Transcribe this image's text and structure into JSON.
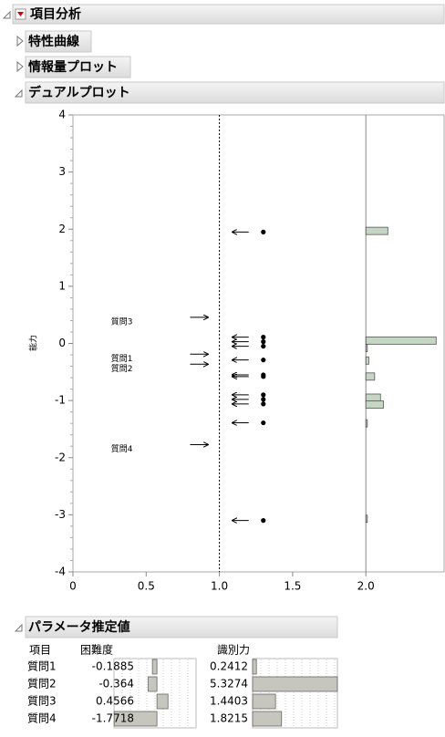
{
  "outline": {
    "title": "項目分析",
    "sections": [
      "特性曲線",
      "情報量プロット",
      "デュアルプロット"
    ]
  },
  "dual_plot": {
    "type": "scatter",
    "y_label": "能力",
    "xlim": [
      0,
      2.5
    ],
    "ylim": [
      -4,
      4
    ],
    "xticks": [
      0,
      0.5,
      {
        "value": 1,
        "label": "1.0"
      },
      1.5,
      {
        "value": 2,
        "label": "2.0"
      }
    ],
    "yticks": [
      -4,
      -3,
      -2,
      -1,
      0,
      1,
      2,
      3,
      4
    ],
    "reference_lines": [
      1,
      2
    ],
    "ability": {
      "x": 1.3,
      "values": [
        1.95,
        0.11,
        0.03,
        -0.05,
        -0.29,
        -0.55,
        -0.58,
        -0.9,
        -0.98,
        -1.06,
        -1.39,
        -3.1
      ]
    },
    "histogram": {
      "bin_centers": [
        1.97,
        0.05,
        -0.08,
        -0.3,
        -0.58,
        -0.95,
        -1.07,
        -1.4,
        -3.07
      ],
      "values": [
        0.15,
        0.48,
        0.01,
        0.02,
        0.06,
        0.1,
        0.12,
        0.01,
        0.01
      ]
    }
  },
  "estimates": {
    "title": "パラメータ推定値",
    "columns": [
      "項目",
      "困難度",
      "識別力"
    ],
    "rows": [
      [
        "質問1",
        -0.1885,
        0.2412
      ],
      [
        "質問2",
        -0.364,
        5.3274
      ],
      [
        "質問3",
        0.4566,
        1.4403
      ],
      [
        "質問4",
        -1.7718,
        1.8215
      ]
    ],
    "difficulty_xlim": [
      -1.78,
      1.62
    ],
    "discrimination_xlim": [
      0,
      5.33
    ]
  }
}
